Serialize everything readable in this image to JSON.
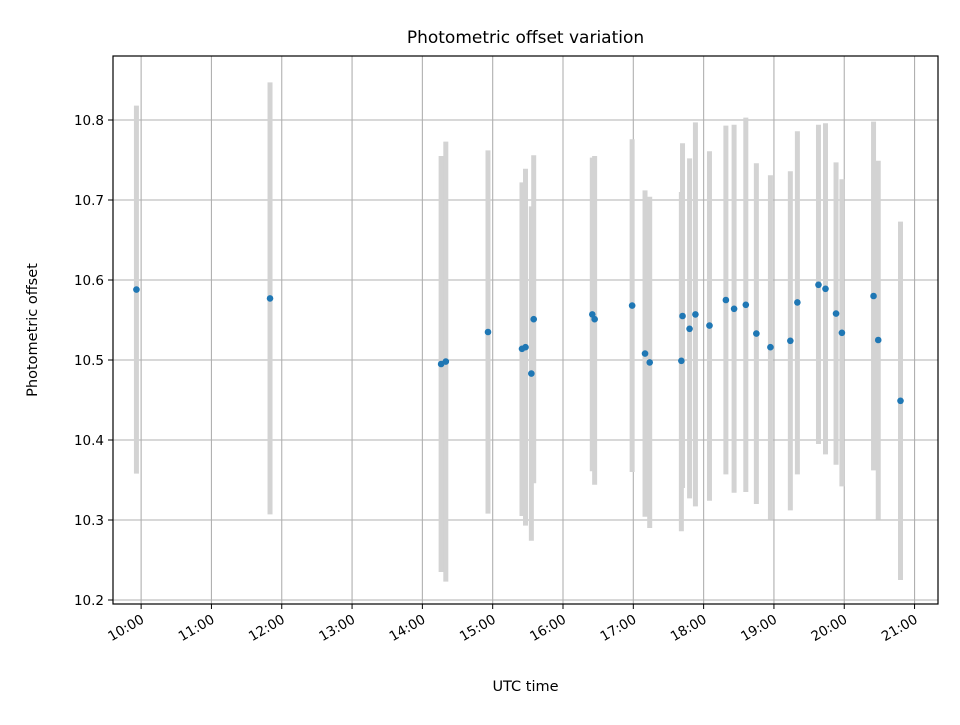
{
  "chart_data": {
    "type": "scatter",
    "title": "Photometric offset variation",
    "xlabel": "UTC time",
    "ylabel": "Photometric offset",
    "grid": true,
    "xlim": [
      "09:36",
      "21:20"
    ],
    "ylim": [
      10.195,
      10.88
    ],
    "x_ticks": [
      "10:00",
      "11:00",
      "12:00",
      "13:00",
      "14:00",
      "15:00",
      "16:00",
      "17:00",
      "18:00",
      "19:00",
      "20:00",
      "21:00"
    ],
    "y_ticks": [
      10.2,
      10.3,
      10.4,
      10.5,
      10.6,
      10.7,
      10.8
    ],
    "y_tick_labels": [
      "10.2",
      "10.3",
      "10.4",
      "10.5",
      "10.6",
      "10.7",
      "10.8"
    ],
    "marker_color": "#1f77b4",
    "errorbar_color": "#d3d3d3",
    "points": [
      {
        "x": "09:56",
        "y": 10.588,
        "ylow": 10.358,
        "yhigh": 10.818
      },
      {
        "x": "11:50",
        "y": 10.577,
        "ylow": 10.307,
        "yhigh": 10.847
      },
      {
        "x": "14:16",
        "y": 10.495,
        "ylow": 10.235,
        "yhigh": 10.755
      },
      {
        "x": "14:20",
        "y": 10.498,
        "ylow": 10.223,
        "yhigh": 10.773
      },
      {
        "x": "14:56",
        "y": 10.535,
        "ylow": 10.308,
        "yhigh": 10.762
      },
      {
        "x": "15:25",
        "y": 10.514,
        "ylow": 10.305,
        "yhigh": 10.722
      },
      {
        "x": "15:28",
        "y": 10.516,
        "ylow": 10.293,
        "yhigh": 10.739
      },
      {
        "x": "15:33",
        "y": 10.483,
        "ylow": 10.274,
        "yhigh": 10.692
      },
      {
        "x": "15:35",
        "y": 10.551,
        "ylow": 10.346,
        "yhigh": 10.756
      },
      {
        "x": "16:25",
        "y": 10.557,
        "ylow": 10.361,
        "yhigh": 10.753
      },
      {
        "x": "16:27",
        "y": 10.551,
        "ylow": 10.344,
        "yhigh": 10.755
      },
      {
        "x": "16:59",
        "y": 10.568,
        "ylow": 10.36,
        "yhigh": 10.776
      },
      {
        "x": "17:10",
        "y": 10.508,
        "ylow": 10.304,
        "yhigh": 10.712
      },
      {
        "x": "17:14",
        "y": 10.497,
        "ylow": 10.29,
        "yhigh": 10.704
      },
      {
        "x": "17:41",
        "y": 10.499,
        "ylow": 10.286,
        "yhigh": 10.71
      },
      {
        "x": "17:42",
        "y": 10.555,
        "ylow": 10.34,
        "yhigh": 10.771
      },
      {
        "x": "17:48",
        "y": 10.539,
        "ylow": 10.327,
        "yhigh": 10.752
      },
      {
        "x": "17:53",
        "y": 10.557,
        "ylow": 10.317,
        "yhigh": 10.797
      },
      {
        "x": "18:05",
        "y": 10.543,
        "ylow": 10.324,
        "yhigh": 10.761
      },
      {
        "x": "18:19",
        "y": 10.575,
        "ylow": 10.357,
        "yhigh": 10.793
      },
      {
        "x": "18:26",
        "y": 10.564,
        "ylow": 10.334,
        "yhigh": 10.794
      },
      {
        "x": "18:36",
        "y": 10.569,
        "ylow": 10.335,
        "yhigh": 10.803
      },
      {
        "x": "18:45",
        "y": 10.533,
        "ylow": 10.32,
        "yhigh": 10.746
      },
      {
        "x": "18:57",
        "y": 10.516,
        "ylow": 10.301,
        "yhigh": 10.731
      },
      {
        "x": "19:14",
        "y": 10.524,
        "ylow": 10.312,
        "yhigh": 10.736
      },
      {
        "x": "19:20",
        "y": 10.572,
        "ylow": 10.357,
        "yhigh": 10.786
      },
      {
        "x": "19:38",
        "y": 10.594,
        "ylow": 10.395,
        "yhigh": 10.794
      },
      {
        "x": "19:44",
        "y": 10.589,
        "ylow": 10.382,
        "yhigh": 10.796
      },
      {
        "x": "19:53",
        "y": 10.558,
        "ylow": 10.369,
        "yhigh": 10.747
      },
      {
        "x": "19:58",
        "y": 10.534,
        "ylow": 10.342,
        "yhigh": 10.726
      },
      {
        "x": "20:25",
        "y": 10.58,
        "ylow": 10.362,
        "yhigh": 10.798
      },
      {
        "x": "20:29",
        "y": 10.525,
        "ylow": 10.301,
        "yhigh": 10.749
      },
      {
        "x": "20:48",
        "y": 10.449,
        "ylow": 10.225,
        "yhigh": 10.673
      }
    ]
  }
}
